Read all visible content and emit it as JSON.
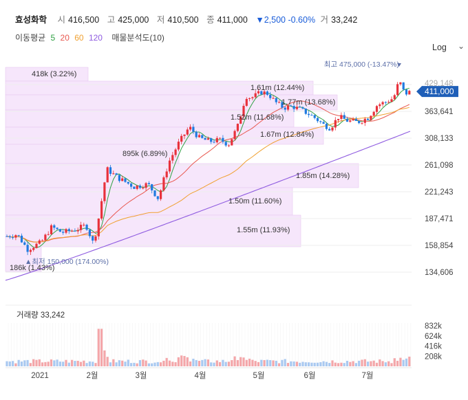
{
  "header": {
    "name": "효성화학",
    "open_label": "시",
    "open": "416,500",
    "high_label": "고",
    "high": "425,000",
    "low_label": "저",
    "low": "410,500",
    "close_label": "종",
    "close": "411,000",
    "change": "▼2,500 -0.60%",
    "volume_label": "거",
    "volume": "33,242"
  },
  "moving_average": {
    "label": "이동평균",
    "periods": [
      "5",
      "20",
      "60",
      "120"
    ],
    "colors": [
      "#2ea043",
      "#e8584f",
      "#f0a030",
      "#8f5ce0"
    ],
    "extra": "매물분석도(10)"
  },
  "scale_toggle": {
    "label": "Log",
    "icon": "chevron-down-icon"
  },
  "chart_data": {
    "type": "candlestick",
    "y_scale": "log",
    "price_ticks": [
      "429,148",
      "363,641",
      "308,133",
      "261,098",
      "221,243",
      "187,471",
      "158,854",
      "134,606"
    ],
    "current_price_label": "411,000",
    "x_ticks": [
      "2021",
      "2월",
      "3월",
      "4월",
      "5월",
      "6월",
      "7월"
    ],
    "high_marker": "최고 475,000 (-13.47%)",
    "low_marker": "▲최저 150,000 (174.00%)",
    "volume_profile": [
      {
        "volume": "418k",
        "pct": "(3.22%)"
      },
      {
        "volume": "1.61m",
        "pct": "(12.44%)"
      },
      {
        "volume": "1.77m",
        "pct": "(13.68%)"
      },
      {
        "volume": "1.52m",
        "pct": "(11.68%)"
      },
      {
        "volume": "1.67m",
        "pct": "(12.84%)"
      },
      {
        "volume": "895k",
        "pct": "(6.89%)"
      },
      {
        "volume": "1.85m",
        "pct": "(14.28%)"
      },
      {
        "volume": "1.50m",
        "pct": "(11.60%)"
      },
      {
        "volume": "1.55m",
        "pct": "(11.93%)"
      },
      {
        "volume": "186k",
        "pct": "(1.43%)"
      }
    ],
    "volume_panel": {
      "title": "거래량 33,242",
      "ticks": [
        "832k",
        "624k",
        "416k",
        "208k"
      ],
      "tick_values": [
        832000,
        624000,
        416000,
        208000
      ]
    },
    "colors": {
      "up": "#e8313b",
      "down": "#1f7ae0",
      "profile": "#f6e6fb",
      "profile_edge": "#e6c8f0"
    }
  }
}
